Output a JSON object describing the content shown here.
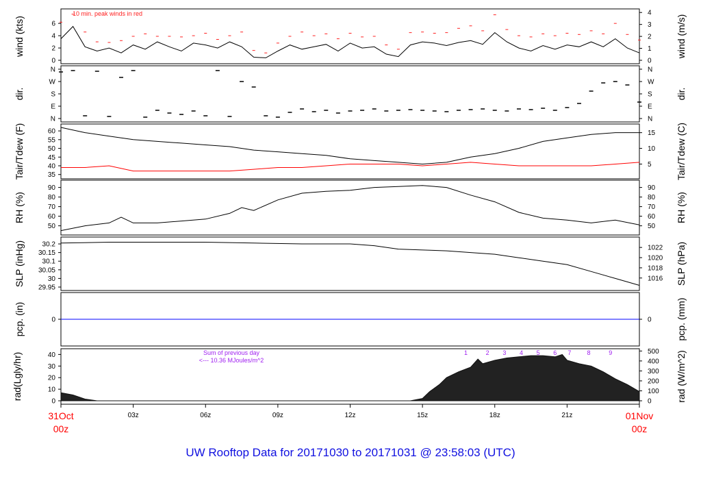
{
  "title": "UW Rooftop Data for 20171030  to  20171031 @ 23:58:03  (UTC)",
  "colors": {
    "line": "#000000",
    "peak": "#ff2020",
    "dew": "#ff0000",
    "pcp": "#0000ff",
    "annot": "#a020f0",
    "title": "#1010e0",
    "date": "#ff0000"
  },
  "x_axis": {
    "start_label": [
      "31Oct",
      "00z"
    ],
    "end_label": [
      "01Nov",
      "00z"
    ],
    "ticks": [
      "03z",
      "06z",
      "09z",
      "12z",
      "15z",
      "18z",
      "21z"
    ],
    "tick_hours": [
      3,
      6,
      9,
      12,
      15,
      18,
      21
    ]
  },
  "chart_data": [
    {
      "type": "line",
      "ylabel": "wind (kts)",
      "ylabel_right": "wind (m/s)",
      "ylim": [
        0,
        7.8
      ],
      "yticks": [
        0,
        2,
        4,
        6
      ],
      "yticks_right": [
        0,
        1,
        2,
        3,
        4
      ],
      "annotation": "10 min. peak winds in red",
      "x_hours": [
        0,
        0.5,
        1,
        1.5,
        2,
        2.5,
        3,
        3.5,
        4,
        4.5,
        5,
        5.5,
        6,
        6.5,
        7,
        7.5,
        8,
        8.5,
        9,
        9.5,
        10,
        10.5,
        11,
        11.5,
        12,
        12.5,
        13,
        13.5,
        14,
        14.5,
        15,
        15.5,
        16,
        16.5,
        17,
        17.5,
        18,
        18.5,
        19,
        19.5,
        20,
        20.5,
        21,
        21.5,
        22,
        22.5,
        23,
        23.5,
        24
      ],
      "series": [
        {
          "values": [
            3.5,
            5.5,
            2.2,
            1.5,
            2.0,
            1.2,
            2.5,
            1.8,
            3.0,
            2.2,
            1.5,
            2.8,
            2.5,
            2.0,
            3.0,
            2.2,
            0.5,
            0.4,
            1.5,
            2.5,
            1.8,
            2.2,
            2.6,
            1.5,
            2.8,
            2.0,
            2.2,
            1.0,
            0.6,
            2.5,
            3.0,
            2.8,
            2.4,
            2.9,
            3.2,
            2.6,
            4.5,
            3.0,
            2.0,
            1.5,
            2.4,
            1.8,
            2.5,
            2.2,
            3.0,
            2.2,
            3.5,
            2.0,
            1.2
          ]
        },
        {
          "name": "peak",
          "values": [
            6.2,
            7.5,
            4.6,
            3.0,
            2.9,
            3.2,
            3.9,
            4.3,
            3.9,
            3.9,
            3.8,
            4.0,
            4.4,
            3.4,
            4.0,
            4.6,
            1.6,
            1.2,
            2.8,
            3.9,
            4.6,
            4.0,
            4.3,
            3.5,
            4.4,
            3.8,
            3.9,
            2.5,
            1.8,
            4.5,
            4.6,
            4.4,
            4.5,
            5.2,
            5.6,
            4.8,
            7.4,
            5.0,
            4.0,
            3.8,
            4.3,
            4.0,
            4.4,
            4.2,
            4.8,
            4.3,
            6.0,
            4.2,
            3.3
          ]
        }
      ]
    },
    {
      "type": "scatter",
      "ylabel": "dir.",
      "ylabel_right": "dir.",
      "ylim": [
        0,
        360
      ],
      "yticks": [
        "N",
        "E",
        "S",
        "W",
        "N"
      ],
      "ytick_values": [
        0,
        90,
        180,
        270,
        360
      ],
      "x_hours": [
        0,
        0.5,
        1,
        1.5,
        2,
        2.5,
        3,
        3.5,
        4,
        4.5,
        5,
        5.5,
        6,
        6.5,
        7,
        7.5,
        8,
        8.5,
        9,
        9.5,
        10,
        10.5,
        11,
        11.5,
        12,
        12.5,
        13,
        13.5,
        14,
        14.5,
        15,
        15.5,
        16,
        16.5,
        17,
        17.5,
        18,
        18.5,
        19,
        19.5,
        20,
        20.5,
        21,
        21.5,
        22,
        22.5,
        23,
        23.5,
        24
      ],
      "values": [
        340,
        350,
        20,
        345,
        15,
        300,
        350,
        10,
        60,
        40,
        30,
        55,
        20,
        350,
        15,
        270,
        230,
        20,
        10,
        45,
        70,
        50,
        60,
        40,
        55,
        60,
        70,
        55,
        60,
        65,
        60,
        55,
        50,
        60,
        65,
        70,
        60,
        55,
        70,
        65,
        75,
        60,
        80,
        110,
        200,
        260,
        270,
        245,
        120
      ]
    },
    {
      "type": "line",
      "ylabel": "Tair/Tdew (F)",
      "ylabel_right": "Tair/Tdew (C)",
      "ylim": [
        34.5,
        62
      ],
      "yticks": [
        35,
        40,
        45,
        50,
        55,
        60
      ],
      "yticks_right": [
        5,
        10,
        15
      ],
      "x_hours": [
        0,
        1,
        2,
        3,
        4,
        5,
        6,
        7,
        8,
        9,
        10,
        11,
        12,
        13,
        14,
        15,
        16,
        17,
        18,
        19,
        20,
        21,
        22,
        23,
        24
      ],
      "series": [
        {
          "name": "Tair",
          "values": [
            62,
            59,
            57,
            55,
            54,
            53,
            52,
            51,
            49,
            48,
            47,
            46,
            44,
            43,
            42,
            41,
            42,
            45,
            47,
            50,
            54,
            56,
            58,
            59,
            59
          ]
        },
        {
          "name": "Tdew",
          "values": [
            39,
            39,
            40,
            37,
            37,
            37,
            37,
            37,
            38,
            39,
            39,
            40,
            41,
            41,
            41,
            40,
            41,
            42,
            41,
            40,
            40,
            40,
            40,
            41,
            42
          ]
        }
      ]
    },
    {
      "type": "line",
      "ylabel": "RH (%)",
      "ylabel_right": "RH (%)",
      "ylim": [
        44,
        94
      ],
      "yticks": [
        50,
        60,
        70,
        80,
        90
      ],
      "x_hours": [
        0,
        1,
        2,
        2.5,
        3,
        4,
        5,
        6,
        7,
        7.5,
        8,
        9,
        10,
        11,
        12,
        13,
        14,
        15,
        16,
        17,
        18,
        19,
        20,
        21,
        22,
        23,
        24
      ],
      "series": [
        {
          "values": [
            45,
            50,
            53,
            59,
            53,
            53,
            55,
            57,
            63,
            69,
            66,
            77,
            84,
            86,
            87,
            90,
            91,
            92,
            90,
            82,
            75,
            64,
            58,
            56,
            53,
            56,
            51
          ]
        }
      ]
    },
    {
      "type": "line",
      "ylabel": "SLP (inHg)",
      "ylabel_right": "SLP (hPa)",
      "ylim": [
        29.95,
        30.22
      ],
      "yticks": [
        29.95,
        30.0,
        30.05,
        30.1,
        30.15,
        30.2
      ],
      "yticks_right": [
        1016,
        1018,
        1020,
        1022
      ],
      "x_hours": [
        0,
        2,
        4,
        6,
        8,
        10,
        12,
        13,
        14,
        15,
        16,
        17,
        18,
        19,
        20,
        21,
        22,
        23,
        24
      ],
      "series": [
        {
          "values": [
            30.205,
            30.21,
            30.21,
            30.21,
            30.205,
            30.2,
            30.2,
            30.19,
            30.17,
            30.165,
            30.16,
            30.15,
            30.14,
            30.12,
            30.1,
            30.08,
            30.04,
            30.0,
            29.96
          ]
        }
      ]
    },
    {
      "type": "line",
      "ylabel": "pcp. (in)",
      "ylabel_right": "pcp. (mm)",
      "ylim": [
        -1,
        1
      ],
      "yticks": [
        0
      ],
      "yticks_right": [
        0
      ],
      "x_hours": [
        0,
        24
      ],
      "series": [
        {
          "values": [
            0,
            0
          ]
        }
      ]
    },
    {
      "type": "area",
      "ylabel": "rad(Lgly/hr)",
      "ylabel_right": "rad (W/m^2)",
      "ylim": [
        0,
        42
      ],
      "yticks": [
        0,
        10,
        20,
        30,
        40
      ],
      "yticks_right": [
        0,
        100,
        200,
        300,
        400,
        500
      ],
      "annotation": [
        "Sum of previous day",
        "<--- 10.36 MJoules/m^2"
      ],
      "hour_marks": [
        "1",
        "2",
        "3",
        "4",
        "5",
        "6",
        "7",
        "8",
        "9"
      ],
      "hour_mark_x": [
        16.8,
        17.7,
        18.4,
        19.1,
        19.8,
        20.5,
        21.1,
        21.9,
        22.8
      ],
      "x_hours": [
        0,
        0.5,
        1,
        1.5,
        14.5,
        15,
        15.3,
        15.7,
        16,
        16.5,
        17,
        17.3,
        17.5,
        18,
        18.5,
        19,
        19.5,
        20,
        20.5,
        20.8,
        21,
        21.5,
        22,
        22.5,
        23,
        23.5,
        24
      ],
      "values": [
        7,
        5,
        1.5,
        0,
        0,
        2,
        8,
        14,
        20,
        25,
        29,
        36,
        32,
        35,
        37,
        38,
        39,
        39,
        38,
        40,
        35,
        32,
        30,
        25,
        19,
        14,
        8
      ]
    }
  ]
}
